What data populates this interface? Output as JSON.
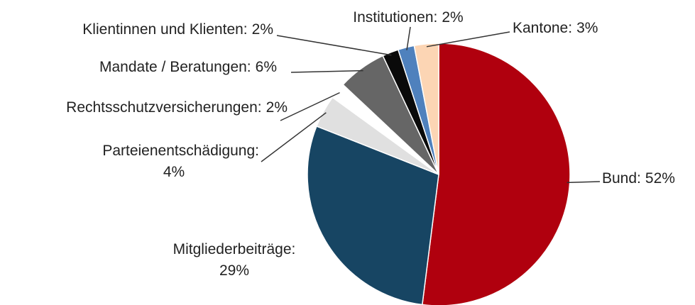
{
  "chart_data": {
    "type": "pie",
    "categories": [
      "Bund:",
      "Mitgliederbeiträge:",
      "Parteienentschädigung:",
      "Rechtsschutzversicherungen:",
      "Mandate / Beratungen:",
      "Klientinnen und Klienten:",
      "Institutionen:",
      "Kantone:"
    ],
    "values": [
      52,
      29,
      4,
      2,
      6,
      2,
      2,
      3
    ],
    "value_labels": [
      "52%",
      "29%",
      "4%",
      "2%",
      "6%",
      "2%",
      "2%",
      "3%"
    ],
    "colors": [
      "#b0000e",
      "#174563",
      "#e0e0e0",
      "#ffffff",
      "#666666",
      "#0a0a0a",
      "#4f81bd",
      "#fcd5b4"
    ]
  }
}
